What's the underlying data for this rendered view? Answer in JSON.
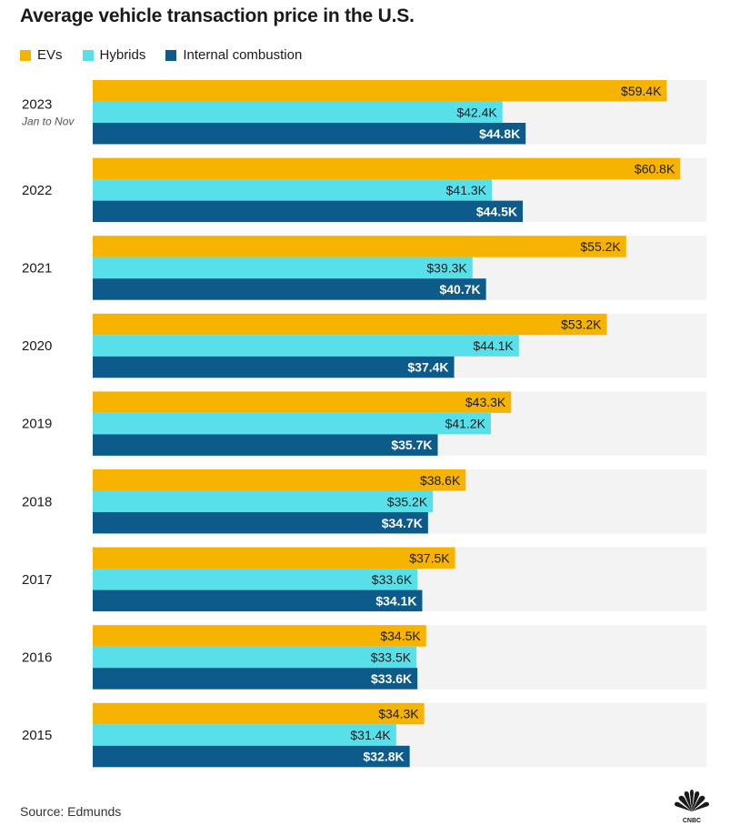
{
  "title": "Average vehicle transaction price in the U.S.",
  "source": "Source: Edmunds",
  "colors": {
    "evs": "#F6B400",
    "hybrids": "#58E0EA",
    "ice": "#0D5B8A",
    "track": "#F3F3F3"
  },
  "chart_data": {
    "type": "bar",
    "orientation": "horizontal",
    "title": "Average vehicle transaction price in the U.S.",
    "xlim": [
      0,
      63.5
    ],
    "unit": "$K",
    "legend": "top-left",
    "categories": [
      {
        "label": "2023",
        "sublabel": "Jan to Nov"
      },
      {
        "label": "2022",
        "sublabel": ""
      },
      {
        "label": "2021",
        "sublabel": ""
      },
      {
        "label": "2020",
        "sublabel": ""
      },
      {
        "label": "2019",
        "sublabel": ""
      },
      {
        "label": "2018",
        "sublabel": ""
      },
      {
        "label": "2017",
        "sublabel": ""
      },
      {
        "label": "2016",
        "sublabel": ""
      },
      {
        "label": "2015",
        "sublabel": ""
      }
    ],
    "series": [
      {
        "name": "EVs",
        "key": "evs",
        "values": [
          59.4,
          60.8,
          55.2,
          53.2,
          43.3,
          38.6,
          37.5,
          34.5,
          34.3
        ],
        "labels": [
          "$59.4K",
          "$60.8K",
          "$55.2K",
          "$53.2K",
          "$43.3K",
          "$38.6K",
          "$37.5K",
          "$34.5K",
          "$34.3K"
        ]
      },
      {
        "name": "Hybrids",
        "key": "hybrids",
        "values": [
          42.4,
          41.3,
          39.3,
          44.1,
          41.2,
          35.2,
          33.6,
          33.5,
          31.4
        ],
        "labels": [
          "$42.4K",
          "$41.3K",
          "$39.3K",
          "$44.1K",
          "$41.2K",
          "$35.2K",
          "$33.6K",
          "$33.5K",
          "$31.4K"
        ]
      },
      {
        "name": "Internal combustion",
        "key": "ice",
        "values": [
          44.8,
          44.5,
          40.7,
          37.4,
          35.7,
          34.7,
          34.1,
          33.6,
          32.8
        ],
        "labels": [
          "$44.8K",
          "$44.5K",
          "$40.7K",
          "$37.4K",
          "$35.7K",
          "$34.7K",
          "$34.1K",
          "$33.6K",
          "$32.8K"
        ]
      }
    ]
  }
}
